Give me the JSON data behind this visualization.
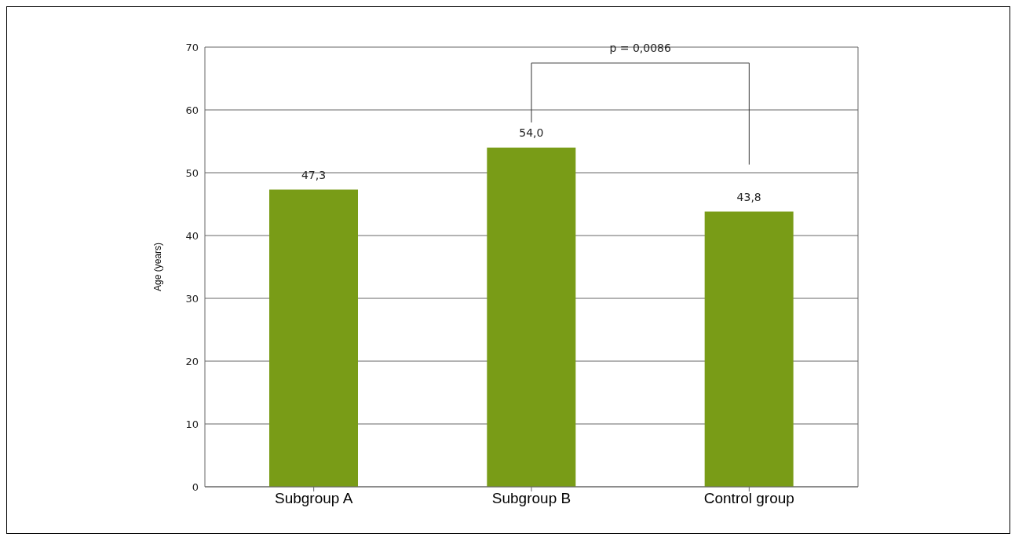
{
  "chart_data": {
    "type": "bar",
    "ylabel": "Age (years)",
    "categories": [
      "Subgroup A",
      "Subgroup B",
      "Control group"
    ],
    "values": [
      47.3,
      54.0,
      43.8
    ],
    "color": "#799c17",
    "value_labels": [
      "47,3",
      "54,0",
      "43,8"
    ],
    "ylim": [
      0,
      70
    ],
    "yticks": [
      0,
      10,
      20,
      30,
      40,
      50,
      60,
      70
    ],
    "grid": "y",
    "annotations": [
      "p = 0,0086"
    ]
  }
}
